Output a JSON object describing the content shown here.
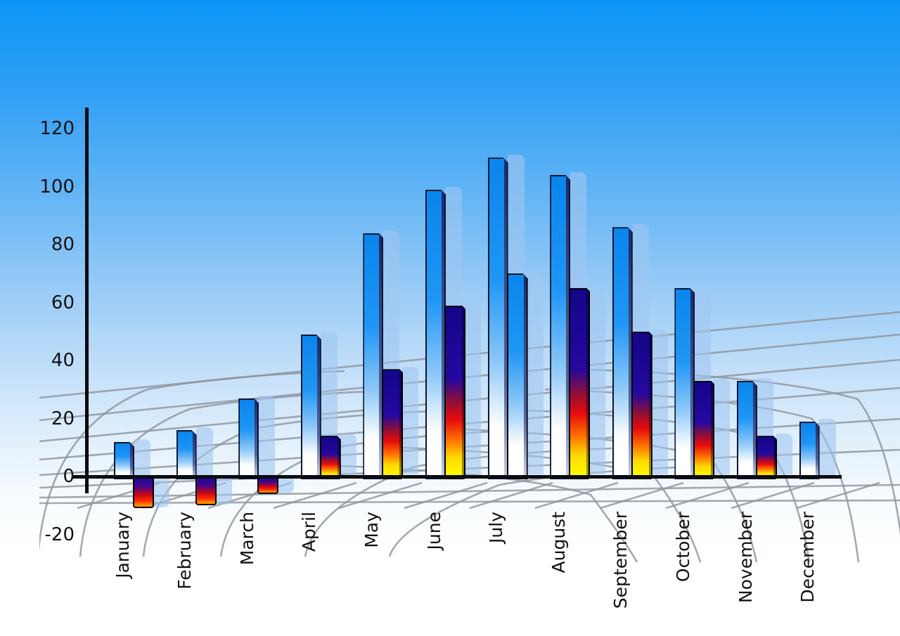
{
  "chart_data": {
    "type": "bar",
    "title": "",
    "xlabel": "",
    "ylabel": "",
    "categories": [
      "January",
      "February",
      "March",
      "April",
      "May",
      "June",
      "July",
      "August",
      "September",
      "October",
      "November",
      "December"
    ],
    "series": [
      {
        "name": "series-1-blue",
        "style": "blue-gradient",
        "values": [
          12,
          16,
          27,
          49,
          84,
          99,
          110,
          104,
          86,
          65,
          33,
          19
        ]
      },
      {
        "name": "series-2-flame",
        "style": "flame-gradient",
        "values": [
          -10,
          -9,
          -5,
          14,
          37,
          59,
          70,
          65,
          50,
          33,
          14,
          null
        ],
        "style_overrides": {
          "6": "blue-gradient"
        }
      }
    ],
    "yticks": [
      120,
      100,
      80,
      60,
      40,
      20,
      0,
      -20
    ],
    "ylim": [
      -20,
      120
    ],
    "xlabel_rotation": -90,
    "legend": "none",
    "grid": "decorative-perspective-grid",
    "colors": {
      "sky_top": "#0b95f6",
      "sky_bottom": "#ffffff",
      "bar_blue_top": "#0c86ec",
      "bar_blue_bottom": "#ffffff",
      "flame_navy": "#1a0b90",
      "flame_red": "#e80b0b",
      "flame_yellow": "#ffff00",
      "shadow_bar": "rgba(160,198,240,0.60)",
      "grid_line": "#8e949b",
      "axis": "#0b0b10",
      "label_text": "#111111"
    }
  }
}
